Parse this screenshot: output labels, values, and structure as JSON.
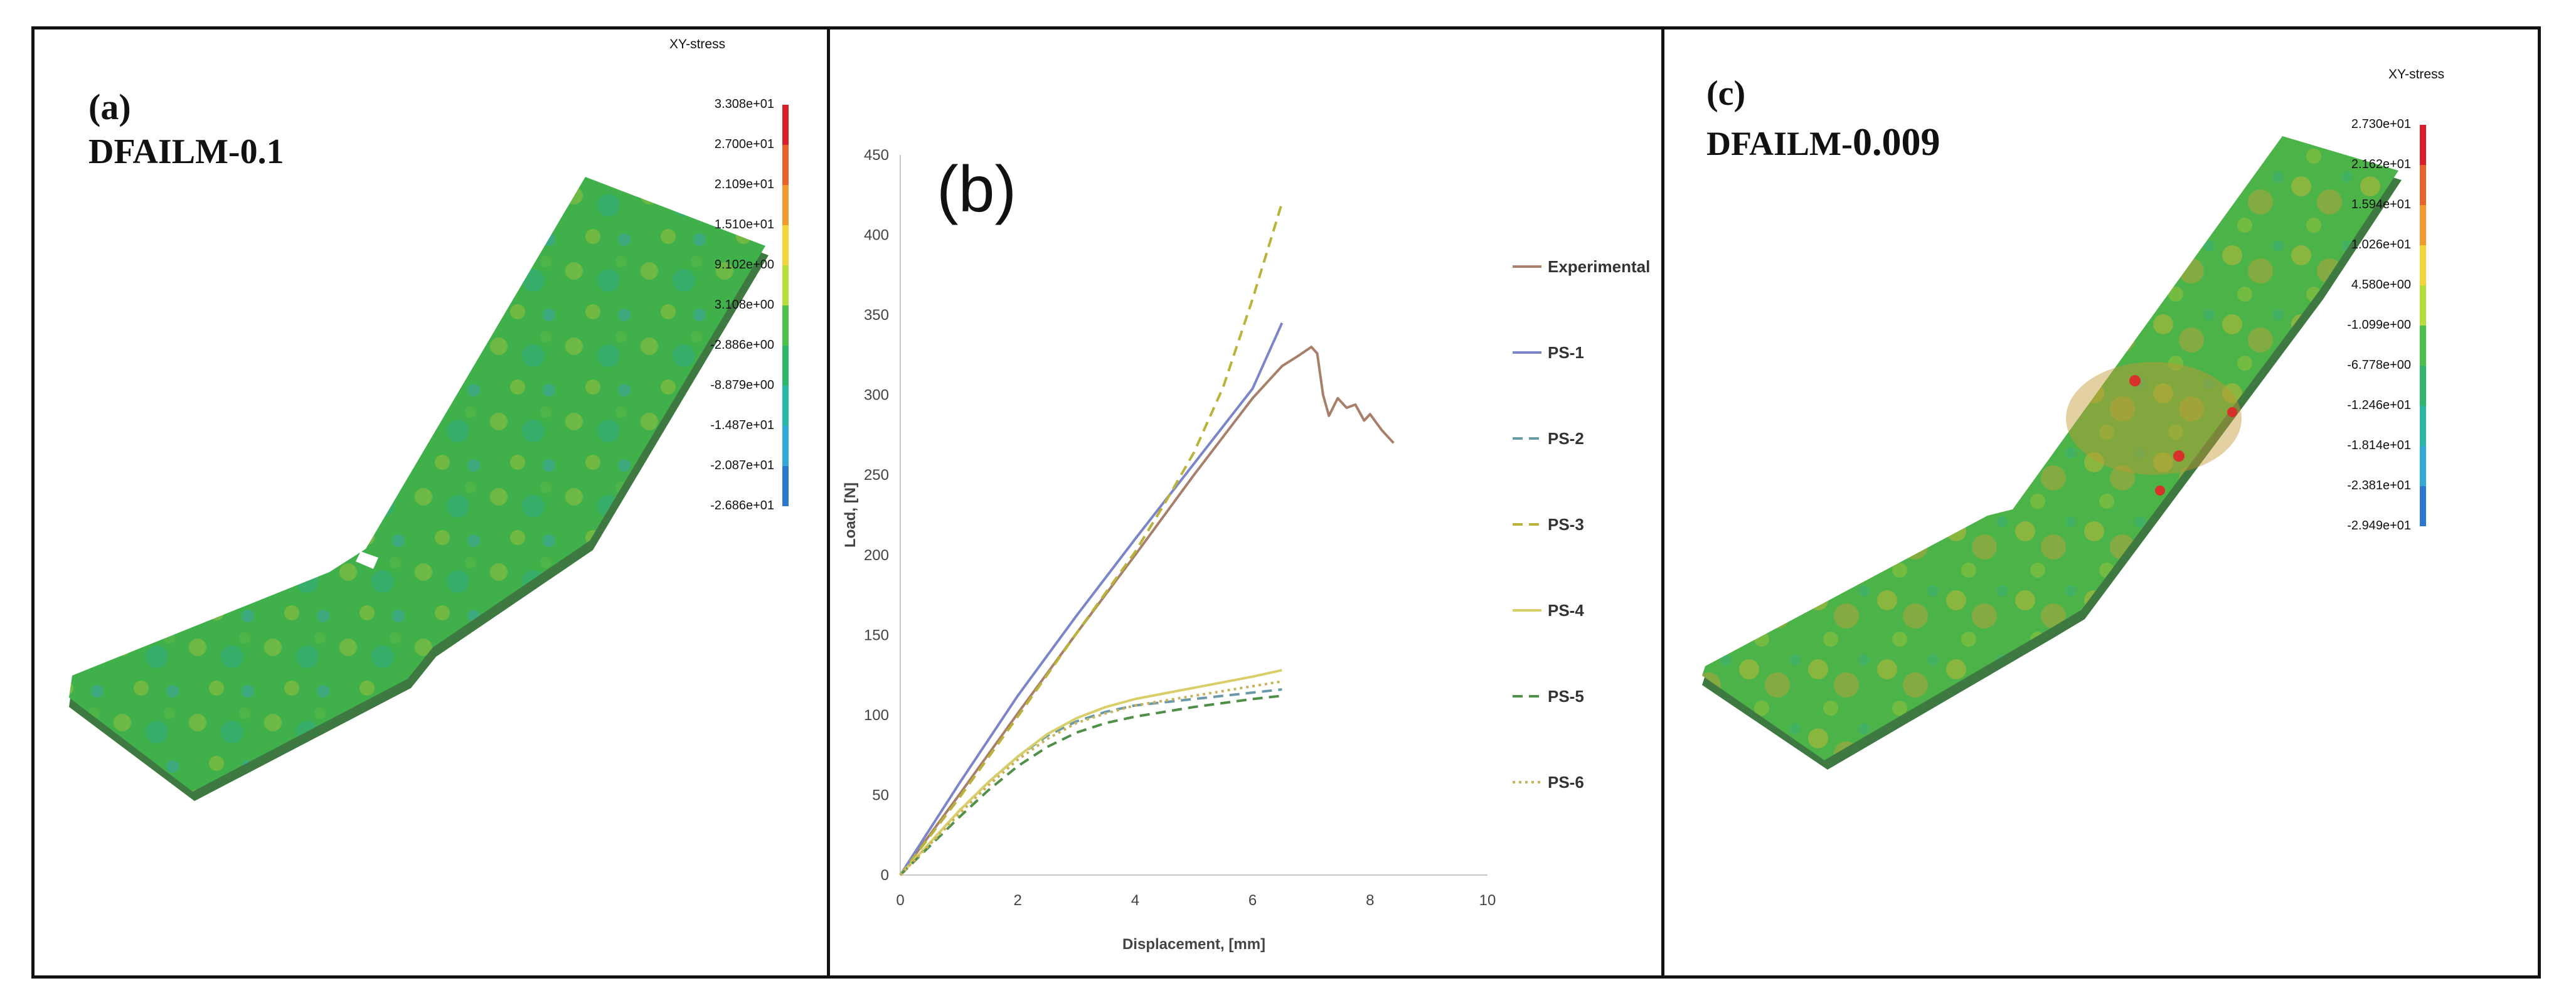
{
  "panel_a": {
    "label": "(a)",
    "title": "DFAILM-0.1",
    "legend_title": "XY-stress",
    "scale": [
      "3.308e+01",
      "2.700e+01",
      "2.109e+01",
      "1.510e+01",
      "9.102e+00",
      "3.108e+00",
      "-2.886e+00",
      "-8.879e+00",
      "-1.487e+01",
      "-2.087e+01",
      "-2.686e+01"
    ],
    "colors": [
      "#d81f2a",
      "#e8632a",
      "#f29a2e",
      "#f4d43b",
      "#b7dd3d",
      "#4cc14a",
      "#2fb66d",
      "#29b8a8",
      "#32a9d7",
      "#2a78d0",
      "#1b2fc2"
    ]
  },
  "panel_b": {
    "label": "(b)"
  },
  "panel_c": {
    "label": "(c)",
    "title_prefix": "DFAILM-",
    "title_value": "0.009",
    "legend_title": "XY-stress",
    "scale": [
      "2.730e+01",
      "2.162e+01",
      "1.594e+01",
      "1.026e+01",
      "4.580e+00",
      "-1.099e+00",
      "-6.778e+00",
      "-1.246e+01",
      "-1.814e+01",
      "-2.381e+01",
      "-2.949e+01"
    ],
    "colors": [
      "#d81f2a",
      "#e8632a",
      "#f29a2e",
      "#f4d43b",
      "#b7dd3d",
      "#4cc14a",
      "#2fb66d",
      "#29b8a8",
      "#32a9d7",
      "#2a78d0",
      "#1b2fc2"
    ]
  },
  "chart_data": {
    "type": "line",
    "title": "(b)",
    "xlabel": "Displacement, [mm]",
    "ylabel": "Load, [N]",
    "xlim": [
      0,
      10
    ],
    "ylim": [
      0,
      450
    ],
    "xticks": [
      0,
      2,
      4,
      6,
      8,
      10
    ],
    "yticks": [
      0,
      50,
      100,
      150,
      200,
      250,
      300,
      350,
      400,
      450
    ],
    "series": [
      {
        "name": "Experimental",
        "color": "#a8806a",
        "dash": "solid",
        "x": [
          0,
          1,
          2,
          3,
          4,
          5,
          6,
          6.5,
          6.8,
          7.0,
          7.1,
          7.2,
          7.3,
          7.45,
          7.6,
          7.75,
          7.9,
          8.0,
          8.2,
          8.4
        ],
        "y": [
          0,
          50,
          101,
          151,
          200,
          250,
          298,
          318,
          325,
          330,
          326,
          300,
          287,
          298,
          292,
          294,
          284,
          288,
          278,
          270
        ]
      },
      {
        "name": "PS-1",
        "color": "#7a86c8",
        "dash": "solid",
        "x": [
          0,
          1,
          2,
          3,
          4,
          5,
          6,
          6.5
        ],
        "y": [
          0,
          57,
          112,
          162,
          210,
          257,
          304,
          345
        ]
      },
      {
        "name": "PS-2",
        "color": "#6a9aa8",
        "dash": "dashed",
        "x": [
          0,
          0.5,
          1,
          1.5,
          2,
          2.5,
          3,
          3.5,
          4,
          5,
          6,
          6.5
        ],
        "y": [
          0,
          20,
          40,
          58,
          74,
          87,
          96,
          102,
          106,
          110,
          114,
          116
        ]
      },
      {
        "name": "PS-3",
        "color": "#b9b33a",
        "dash": "dashed",
        "x": [
          0,
          1,
          2,
          3,
          4,
          4.5,
          5,
          5.5,
          6,
          6.5
        ],
        "y": [
          0,
          48,
          99,
          151,
          202,
          232,
          264,
          305,
          360,
          420
        ]
      },
      {
        "name": "PS-4",
        "color": "#d8cf6a",
        "dash": "solid",
        "x": [
          0,
          0.5,
          1,
          1.5,
          2,
          2.5,
          3,
          3.5,
          4,
          5,
          6,
          6.5
        ],
        "y": [
          0,
          20,
          40,
          58,
          74,
          88,
          98,
          105,
          110,
          117,
          124,
          128
        ]
      },
      {
        "name": "PS-5",
        "color": "#4f8f47",
        "dash": "dashed",
        "x": [
          0,
          0.5,
          1,
          1.5,
          2,
          2.5,
          3,
          3.5,
          4,
          5,
          6,
          6.5
        ],
        "y": [
          0,
          18,
          36,
          53,
          68,
          80,
          89,
          95,
          99,
          105,
          110,
          112
        ]
      },
      {
        "name": "PS-6",
        "color": "#c9b25a",
        "dash": "dotted",
        "x": [
          0,
          0.5,
          1,
          1.5,
          2,
          2.5,
          3,
          3.5,
          4,
          5,
          6,
          6.5
        ],
        "y": [
          0,
          19,
          38,
          56,
          72,
          85,
          95,
          101,
          106,
          112,
          118,
          121
        ]
      }
    ],
    "legend": [
      "Experimental",
      "PS-1",
      "PS-2",
      "PS-3",
      "PS-4",
      "PS-5",
      "PS-6"
    ]
  }
}
